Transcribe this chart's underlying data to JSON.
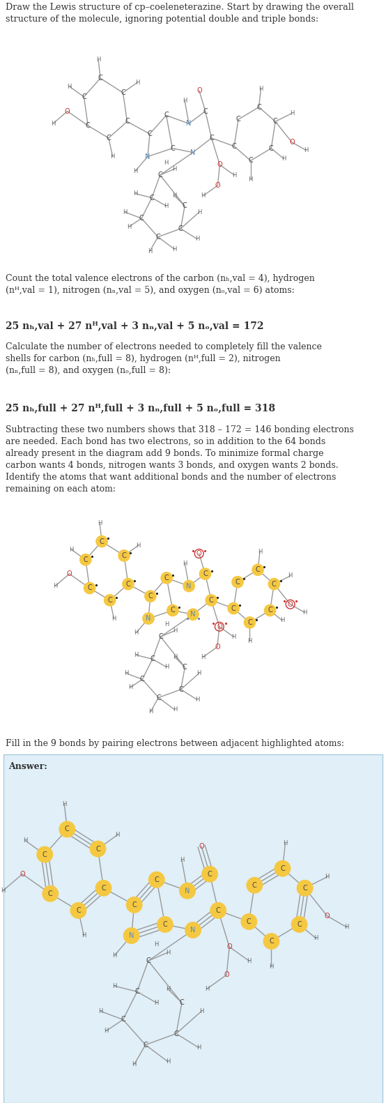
{
  "bg_color": "#ffffff",
  "divider_color": "#cccccc",
  "text_color": "#333333",
  "bond_color": "#999999",
  "C_color": "#444444",
  "N_color": "#5588bb",
  "O_color": "#cc3333",
  "H_color": "#666666",
  "highlight_C_color": "#f5c842",
  "highlight_N_color": "#5588bb",
  "highlight_O_color": "#cc3333",
  "answer_bg": "#e0eff8",
  "answer_border": "#aaccdd"
}
